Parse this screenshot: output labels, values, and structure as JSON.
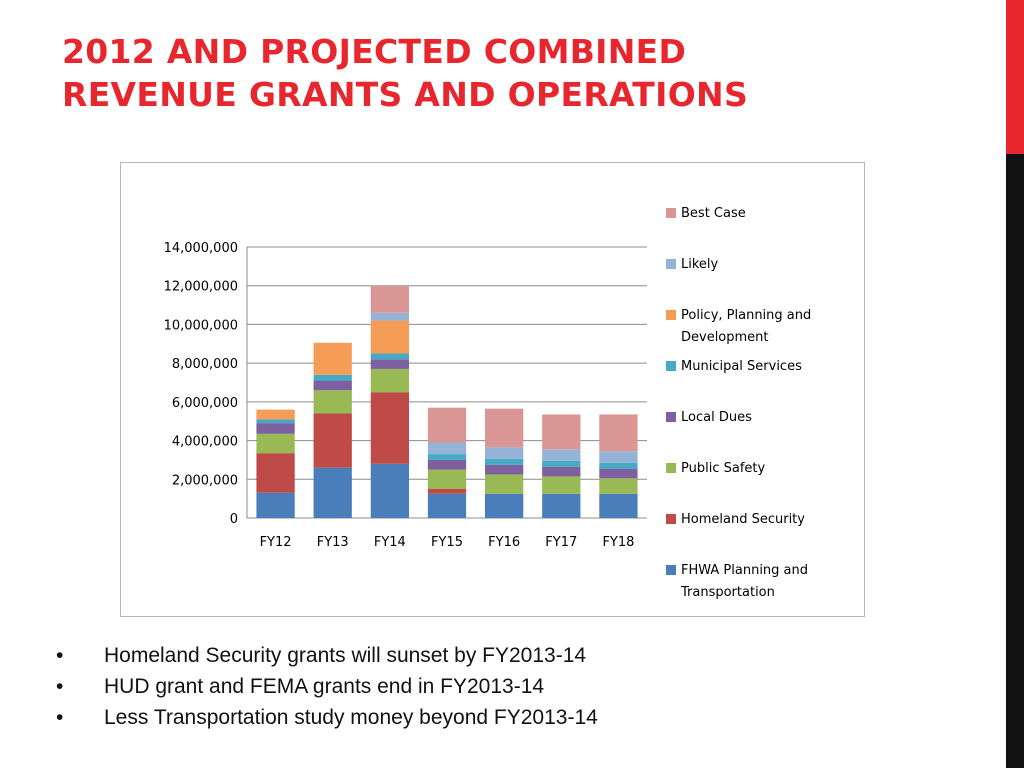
{
  "slide": {
    "title_lines": [
      "2012 and Projected Combined",
      "Revenue Grants and Operations"
    ],
    "bullet_symbol": "•",
    "bullets": [
      "Homeland Security grants will sunset by FY2013-14",
      "HUD grant and FEMA grants end in FY2013-14",
      "Less Transportation study money beyond FY2013-14"
    ],
    "accent_color": "#e8262e",
    "side_bar_colors": [
      "#e8262e",
      "#111111"
    ]
  },
  "chart_data": {
    "type": "bar",
    "stacked": true,
    "title": "",
    "xlabel": "",
    "ylabel": "",
    "ylim": [
      0,
      14000000
    ],
    "yticks": [
      0,
      2000000,
      4000000,
      6000000,
      8000000,
      10000000,
      12000000,
      14000000
    ],
    "ytick_labels": [
      "0",
      "2,000,000",
      "4,000,000",
      "6,000,000",
      "8,000,000",
      "10,000,000",
      "12,000,000",
      "14,000,000"
    ],
    "grid": true,
    "legend_position": "right",
    "categories": [
      "FY12",
      "FY13",
      "FY14",
      "FY15",
      "FY16",
      "FY17",
      "FY18"
    ],
    "series": [
      {
        "name": "FHWA Planning and Transportation",
        "color": "#4a7ebb",
        "values": [
          1300000,
          2600000,
          2800000,
          1250000,
          1250000,
          1250000,
          1250000
        ]
      },
      {
        "name": "Homeland Security",
        "color": "#be4b48",
        "values": [
          2050000,
          2800000,
          3700000,
          250000,
          0,
          0,
          0
        ]
      },
      {
        "name": "Public Safety",
        "color": "#98b954",
        "values": [
          1000000,
          1200000,
          1200000,
          1000000,
          1000000,
          900000,
          800000
        ]
      },
      {
        "name": "Local Dues",
        "color": "#7d60a0",
        "values": [
          550000,
          500000,
          500000,
          500000,
          500000,
          500000,
          500000
        ]
      },
      {
        "name": "Municipal Services",
        "color": "#46aac4",
        "values": [
          200000,
          300000,
          300000,
          300000,
          300000,
          300000,
          300000
        ]
      },
      {
        "name": "Policy, Planning and Development",
        "color": "#f59d56",
        "values": [
          500000,
          1650000,
          1700000,
          0,
          0,
          0,
          0
        ]
      },
      {
        "name": "Likely",
        "color": "#95b3d7",
        "values": [
          0,
          0,
          400000,
          600000,
          600000,
          600000,
          600000
        ]
      },
      {
        "name": "Best Case",
        "color": "#d99694",
        "values": [
          0,
          0,
          1400000,
          1800000,
          2000000,
          1800000,
          1900000
        ]
      }
    ]
  }
}
